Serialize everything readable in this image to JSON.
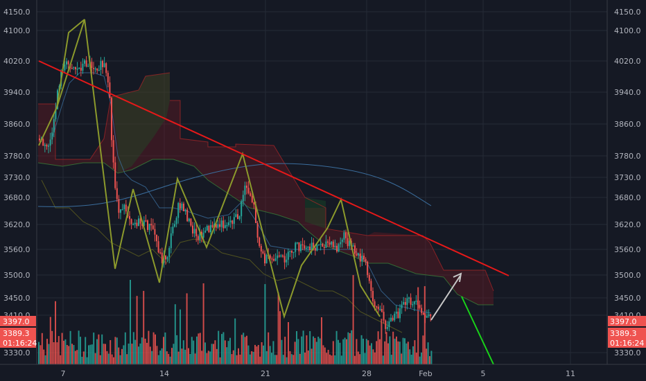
{
  "chart_data": {
    "type": "candlestick",
    "y_ticks": [
      "4150.0",
      "4100.0",
      "4020.0",
      "3940.0",
      "3860.0",
      "3780.0",
      "3730.0",
      "3680.0",
      "3620.0",
      "3560.0",
      "3500.0",
      "3450.0",
      "3410.0",
      "3330.0"
    ],
    "x_ticks": [
      "7",
      "14",
      "21",
      "28",
      "Feb",
      "5",
      "11"
    ],
    "price_badges": [
      {
        "label": "3397.0",
        "color": "#ef5350"
      },
      {
        "label": "3389.3",
        "color": "#ef5350"
      },
      {
        "label": "01:16:24",
        "color": "#ef5350"
      }
    ],
    "colors": {
      "up": "#26a69a",
      "down": "#ef5350",
      "trendline": "#e61919",
      "zigzag": "#8c9a2c",
      "moving_average": "#3b6e9e",
      "forecast_arrow": "#c8c8c8",
      "projection_line": "#19d219"
    },
    "grid": true
  }
}
